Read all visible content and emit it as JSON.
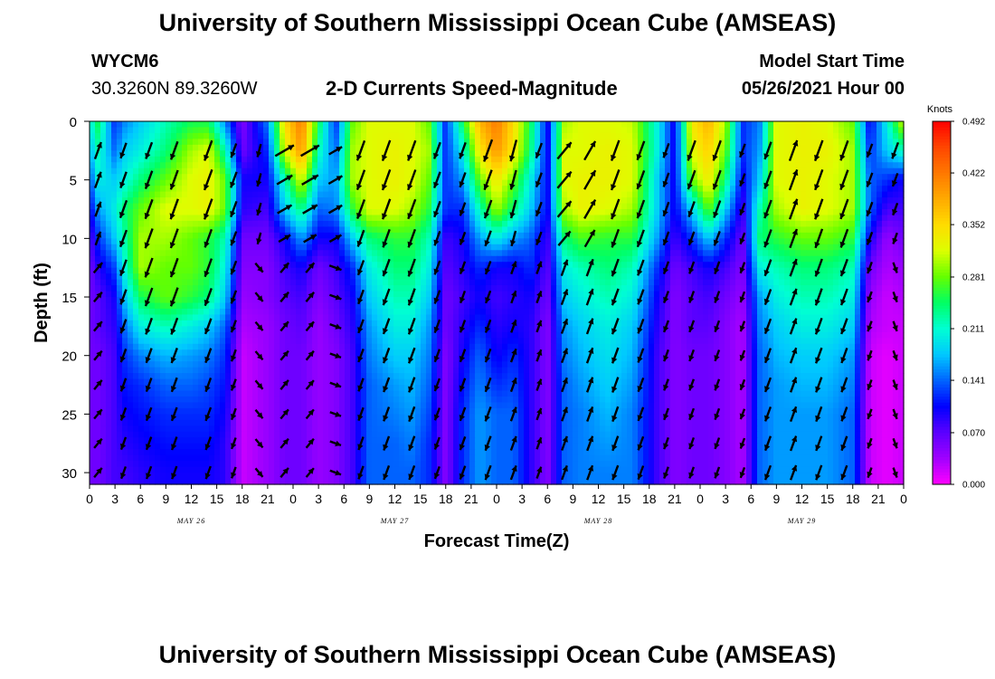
{
  "header": {
    "title": "University of Southern Mississippi Ocean Cube (AMSEAS)",
    "station_id": "WYCM6",
    "station_coords": "30.3260N  89.3260W",
    "plot_title": "2-D Currents Speed-Magnitude",
    "model_start_label": "Model Start Time",
    "model_start_value": "05/26/2021 Hour 00"
  },
  "footer": {
    "title": "University of Southern Mississippi Ocean Cube (AMSEAS)"
  },
  "colors": {
    "colormap": [
      "#ff00ff",
      "#a000ff",
      "#5a00ff",
      "#0000ff",
      "#0064ff",
      "#00c8ff",
      "#00ffd2",
      "#00ff64",
      "#64ff00",
      "#dcff00",
      "#ffdc00",
      "#ffaa00",
      "#ff7800",
      "#ff4600",
      "#ff0000"
    ]
  },
  "chart_data": {
    "type": "heatmap",
    "title": "2-D Currents Speed-Magnitude",
    "xlabel": "Forecast Time(Z)",
    "ylabel": "Depth (ft)",
    "xlim": [
      0,
      96
    ],
    "ylim": [
      0,
      31
    ],
    "y_inverted": true,
    "x_ticks": [
      0,
      3,
      6,
      9,
      12,
      15,
      18,
      21,
      24,
      27,
      30,
      33,
      36,
      39,
      42,
      45,
      48,
      51,
      54,
      57,
      60,
      63,
      66,
      69,
      72,
      75,
      78,
      81,
      84,
      87,
      90,
      93,
      96
    ],
    "x_tick_labels": [
      "0",
      "3",
      "6",
      "9",
      "12",
      "15",
      "18",
      "21",
      "0",
      "3",
      "6",
      "9",
      "12",
      "15",
      "18",
      "21",
      "0",
      "3",
      "6",
      "9",
      "12",
      "15",
      "18",
      "21",
      "0",
      "3",
      "6",
      "9",
      "12",
      "15",
      "18",
      "21",
      "0"
    ],
    "day_labels": [
      {
        "x": 12,
        "label": "MAY 26"
      },
      {
        "x": 36,
        "label": "MAY 27"
      },
      {
        "x": 60,
        "label": "MAY 28"
      },
      {
        "x": 84,
        "label": "MAY 29"
      }
    ],
    "y_ticks": [
      0,
      5,
      10,
      15,
      20,
      25,
      30
    ],
    "colorbar": {
      "label": "Knots",
      "vmin": 0.0,
      "vmax": 0.492,
      "tick_values": [
        0.492,
        0.422,
        0.352,
        0.281,
        0.211,
        0.141,
        0.07,
        0.0
      ],
      "tick_labels": [
        "0.492",
        "0.422",
        "0.352",
        "0.281",
        "0.211",
        "0.141",
        "0.070",
        "0.000"
      ]
    },
    "depth_levels": [
      0,
      2.5,
      5,
      7.5,
      10,
      12.5,
      15,
      17.5,
      20,
      22.5,
      25,
      27.5,
      30,
      31
    ],
    "time_nodes": [
      0,
      1,
      3,
      4,
      6,
      9,
      12,
      14,
      16,
      18,
      21,
      23,
      25,
      27,
      29,
      31,
      33,
      36,
      38,
      40,
      42,
      44,
      46,
      48,
      50,
      52,
      54,
      56,
      58,
      61,
      64,
      67,
      69,
      71,
      73,
      75,
      77,
      79,
      81,
      84,
      87,
      90,
      92,
      94,
      96
    ],
    "speed_grid_knots": [
      [
        0.2,
        0.17,
        0.13,
        0.1,
        0.07,
        0.06,
        0.06,
        0.06,
        0.06,
        0.06,
        0.06,
        0.06,
        0.06,
        0.06
      ],
      [
        0.25,
        0.22,
        0.2,
        0.16,
        0.12,
        0.09,
        0.07,
        0.07,
        0.06,
        0.06,
        0.06,
        0.06,
        0.06,
        0.06
      ],
      [
        0.12,
        0.14,
        0.18,
        0.2,
        0.18,
        0.13,
        0.1,
        0.09,
        0.08,
        0.08,
        0.08,
        0.08,
        0.08,
        0.08
      ],
      [
        0.15,
        0.18,
        0.2,
        0.24,
        0.22,
        0.2,
        0.17,
        0.14,
        0.12,
        0.11,
        0.1,
        0.09,
        0.08,
        0.08
      ],
      [
        0.18,
        0.2,
        0.24,
        0.28,
        0.3,
        0.3,
        0.25,
        0.2,
        0.15,
        0.12,
        0.11,
        0.1,
        0.09,
        0.09
      ],
      [
        0.22,
        0.24,
        0.28,
        0.32,
        0.3,
        0.28,
        0.28,
        0.22,
        0.17,
        0.14,
        0.12,
        0.11,
        0.1,
        0.1
      ],
      [
        0.25,
        0.3,
        0.32,
        0.32,
        0.28,
        0.28,
        0.26,
        0.2,
        0.16,
        0.14,
        0.12,
        0.11,
        0.1,
        0.1
      ],
      [
        0.25,
        0.32,
        0.33,
        0.33,
        0.26,
        0.26,
        0.24,
        0.18,
        0.15,
        0.13,
        0.12,
        0.11,
        0.1,
        0.1
      ],
      [
        0.15,
        0.22,
        0.28,
        0.28,
        0.22,
        0.2,
        0.18,
        0.14,
        0.12,
        0.11,
        0.1,
        0.09,
        0.09,
        0.09
      ],
      [
        0.05,
        0.06,
        0.1,
        0.09,
        0.06,
        0.05,
        0.04,
        0.03,
        0.02,
        0.02,
        0.02,
        0.02,
        0.02,
        0.02
      ],
      [
        0.15,
        0.12,
        0.1,
        0.08,
        0.06,
        0.05,
        0.05,
        0.04,
        0.04,
        0.04,
        0.04,
        0.04,
        0.04,
        0.04
      ],
      [
        0.35,
        0.32,
        0.22,
        0.18,
        0.1,
        0.08,
        0.07,
        0.06,
        0.06,
        0.06,
        0.06,
        0.06,
        0.06,
        0.06
      ],
      [
        0.42,
        0.4,
        0.32,
        0.24,
        0.16,
        0.1,
        0.08,
        0.07,
        0.06,
        0.06,
        0.06,
        0.06,
        0.06,
        0.06
      ],
      [
        0.25,
        0.22,
        0.18,
        0.14,
        0.1,
        0.06,
        0.05,
        0.04,
        0.04,
        0.04,
        0.04,
        0.04,
        0.04,
        0.04
      ],
      [
        0.12,
        0.14,
        0.16,
        0.15,
        0.1,
        0.08,
        0.07,
        0.06,
        0.05,
        0.05,
        0.05,
        0.05,
        0.05,
        0.05
      ],
      [
        0.28,
        0.3,
        0.3,
        0.26,
        0.18,
        0.12,
        0.1,
        0.09,
        0.08,
        0.08,
        0.08,
        0.08,
        0.08,
        0.08
      ],
      [
        0.32,
        0.32,
        0.32,
        0.32,
        0.24,
        0.2,
        0.18,
        0.16,
        0.15,
        0.14,
        0.14,
        0.14,
        0.14,
        0.14
      ],
      [
        0.32,
        0.33,
        0.33,
        0.32,
        0.26,
        0.24,
        0.22,
        0.2,
        0.18,
        0.16,
        0.15,
        0.14,
        0.14,
        0.14
      ],
      [
        0.32,
        0.32,
        0.32,
        0.3,
        0.26,
        0.24,
        0.22,
        0.2,
        0.18,
        0.17,
        0.16,
        0.15,
        0.14,
        0.14
      ],
      [
        0.28,
        0.3,
        0.28,
        0.26,
        0.22,
        0.2,
        0.18,
        0.16,
        0.15,
        0.14,
        0.13,
        0.12,
        0.12,
        0.12
      ],
      [
        0.12,
        0.12,
        0.12,
        0.12,
        0.08,
        0.07,
        0.06,
        0.06,
        0.05,
        0.05,
        0.05,
        0.05,
        0.05,
        0.05
      ],
      [
        0.25,
        0.2,
        0.16,
        0.12,
        0.1,
        0.09,
        0.08,
        0.09,
        0.1,
        0.11,
        0.12,
        0.12,
        0.12,
        0.12
      ],
      [
        0.38,
        0.34,
        0.28,
        0.22,
        0.16,
        0.12,
        0.1,
        0.12,
        0.14,
        0.15,
        0.16,
        0.16,
        0.16,
        0.16
      ],
      [
        0.42,
        0.4,
        0.34,
        0.3,
        0.2,
        0.1,
        0.08,
        0.09,
        0.1,
        0.12,
        0.14,
        0.14,
        0.14,
        0.14
      ],
      [
        0.35,
        0.34,
        0.28,
        0.24,
        0.16,
        0.1,
        0.09,
        0.1,
        0.12,
        0.13,
        0.14,
        0.14,
        0.14,
        0.14
      ],
      [
        0.25,
        0.24,
        0.2,
        0.18,
        0.14,
        0.12,
        0.1,
        0.09,
        0.09,
        0.09,
        0.09,
        0.09,
        0.09,
        0.09
      ],
      [
        0.1,
        0.1,
        0.1,
        0.1,
        0.08,
        0.07,
        0.06,
        0.05,
        0.05,
        0.05,
        0.05,
        0.05,
        0.05,
        0.05
      ],
      [
        0.3,
        0.32,
        0.32,
        0.3,
        0.24,
        0.2,
        0.18,
        0.16,
        0.15,
        0.14,
        0.14,
        0.14,
        0.14,
        0.14
      ],
      [
        0.32,
        0.32,
        0.33,
        0.33,
        0.27,
        0.22,
        0.2,
        0.18,
        0.17,
        0.16,
        0.15,
        0.15,
        0.15,
        0.15
      ],
      [
        0.32,
        0.33,
        0.33,
        0.32,
        0.26,
        0.24,
        0.22,
        0.2,
        0.19,
        0.18,
        0.17,
        0.16,
        0.15,
        0.15
      ],
      [
        0.31,
        0.32,
        0.32,
        0.3,
        0.26,
        0.22,
        0.2,
        0.18,
        0.17,
        0.16,
        0.15,
        0.15,
        0.15,
        0.15
      ],
      [
        0.2,
        0.2,
        0.18,
        0.18,
        0.16,
        0.12,
        0.1,
        0.09,
        0.08,
        0.08,
        0.08,
        0.08,
        0.08,
        0.08
      ],
      [
        0.1,
        0.1,
        0.1,
        0.1,
        0.08,
        0.06,
        0.05,
        0.05,
        0.05,
        0.05,
        0.05,
        0.05,
        0.05,
        0.05
      ],
      [
        0.34,
        0.32,
        0.28,
        0.18,
        0.12,
        0.08,
        0.07,
        0.07,
        0.06,
        0.06,
        0.06,
        0.06,
        0.06,
        0.06
      ],
      [
        0.38,
        0.36,
        0.34,
        0.28,
        0.18,
        0.1,
        0.08,
        0.07,
        0.06,
        0.06,
        0.06,
        0.06,
        0.06,
        0.06
      ],
      [
        0.3,
        0.28,
        0.24,
        0.18,
        0.12,
        0.08,
        0.06,
        0.05,
        0.05,
        0.05,
        0.05,
        0.05,
        0.05,
        0.05
      ],
      [
        0.12,
        0.12,
        0.1,
        0.08,
        0.06,
        0.05,
        0.04,
        0.03,
        0.03,
        0.03,
        0.03,
        0.03,
        0.03,
        0.03
      ],
      [
        0.15,
        0.16,
        0.18,
        0.22,
        0.24,
        0.2,
        0.16,
        0.15,
        0.14,
        0.14,
        0.14,
        0.14,
        0.14,
        0.14
      ],
      [
        0.32,
        0.32,
        0.32,
        0.3,
        0.26,
        0.22,
        0.2,
        0.18,
        0.17,
        0.16,
        0.16,
        0.16,
        0.16,
        0.16
      ],
      [
        0.33,
        0.33,
        0.33,
        0.33,
        0.28,
        0.24,
        0.22,
        0.2,
        0.18,
        0.17,
        0.16,
        0.16,
        0.16,
        0.16
      ],
      [
        0.32,
        0.33,
        0.32,
        0.32,
        0.28,
        0.24,
        0.22,
        0.2,
        0.18,
        0.17,
        0.16,
        0.16,
        0.16,
        0.16
      ],
      [
        0.28,
        0.3,
        0.3,
        0.3,
        0.26,
        0.22,
        0.2,
        0.18,
        0.16,
        0.15,
        0.14,
        0.14,
        0.14,
        0.14
      ],
      [
        0.1,
        0.12,
        0.14,
        0.14,
        0.1,
        0.06,
        0.04,
        0.03,
        0.02,
        0.02,
        0.02,
        0.02,
        0.02,
        0.02
      ],
      [
        0.2,
        0.18,
        0.12,
        0.08,
        0.04,
        0.03,
        0.02,
        0.02,
        0.01,
        0.01,
        0.01,
        0.01,
        0.01,
        0.01
      ],
      [
        0.32,
        0.22,
        0.1,
        0.08,
        0.06,
        0.04,
        0.03,
        0.02,
        0.02,
        0.02,
        0.02,
        0.02,
        0.02,
        0.02
      ]
    ],
    "vectors": {
      "times": [
        1,
        4,
        7,
        10,
        14,
        17,
        20,
        23,
        26,
        29,
        32,
        35,
        38,
        41,
        44,
        47,
        50,
        53,
        56,
        59,
        62,
        65,
        68,
        71,
        74,
        77,
        80,
        83,
        86,
        89,
        92,
        95
      ],
      "depths": [
        2.5,
        5,
        7.5,
        10,
        12.5,
        15,
        17.5,
        20,
        22.5,
        25,
        27.5,
        30
      ],
      "direction_deg": [
        20,
        200,
        200,
        200,
        200,
        200,
        195,
        60,
        60,
        60,
        200,
        200,
        200,
        200,
        200,
        200,
        195,
        200,
        40,
        30,
        200,
        200,
        200,
        200,
        200,
        200,
        200,
        20,
        200,
        200,
        200,
        200
      ],
      "subsurface_direction_deg": [
        40,
        200,
        200,
        200,
        200,
        200,
        140,
        40,
        40,
        110,
        200,
        200,
        200,
        200,
        200,
        200,
        20,
        20,
        20,
        20,
        200,
        200,
        200,
        200,
        200,
        200,
        200,
        20,
        200,
        200,
        200,
        160
      ]
    }
  }
}
